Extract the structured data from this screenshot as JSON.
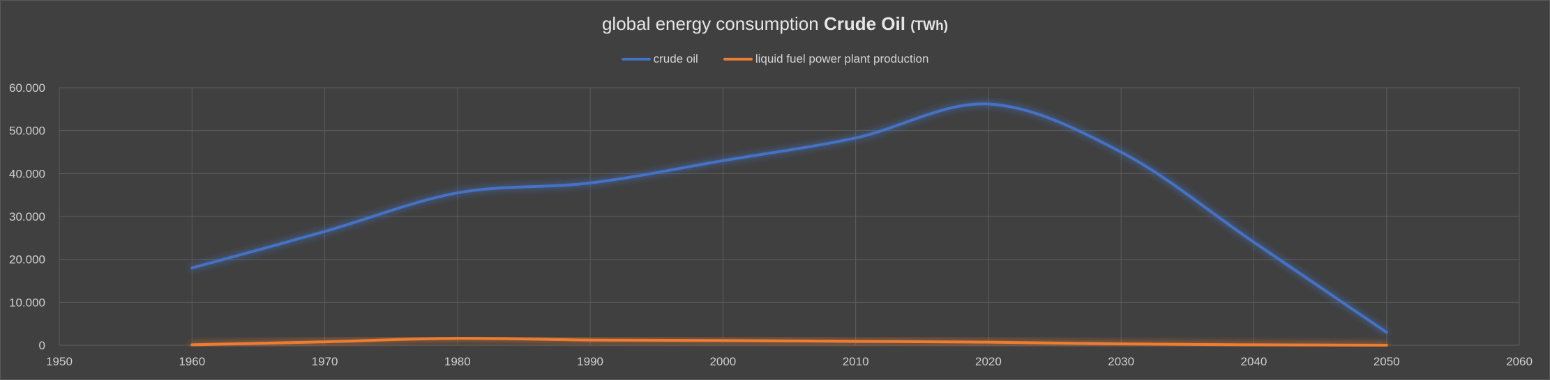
{
  "chart_data": {
    "type": "line",
    "title": "global energy consumption",
    "title_bold": "Crude Oil",
    "title_unit": "(TWh)",
    "xlabel": "",
    "ylabel": "",
    "xlim": [
      1950,
      2060
    ],
    "ylim": [
      0,
      60000
    ],
    "x_ticks": [
      1950,
      1960,
      1970,
      1980,
      1990,
      2000,
      2010,
      2020,
      2030,
      2040,
      2050,
      2060
    ],
    "y_ticks": [
      0,
      10000,
      20000,
      30000,
      40000,
      50000,
      60000
    ],
    "y_tick_labels": [
      "0",
      "10.000",
      "20.000",
      "30.000",
      "40.000",
      "50.000",
      "60.000"
    ],
    "grid": true,
    "legend_position": "top",
    "series": [
      {
        "name": "crude oil",
        "color": "#4472c4",
        "x": [
          1960,
          1970,
          1980,
          1990,
          2000,
          2010,
          2020,
          2030,
          2040,
          2050
        ],
        "y": [
          18000,
          26500,
          35500,
          37800,
          43000,
          48300,
          56200,
          45000,
          24000,
          3000
        ]
      },
      {
        "name": "liquid fuel power plant production",
        "color": "#ed7d31",
        "x": [
          1960,
          1970,
          1980,
          1990,
          2000,
          2010,
          2020,
          2030,
          2040,
          2050
        ],
        "y": [
          100,
          800,
          1600,
          1200,
          1100,
          900,
          700,
          300,
          100,
          0
        ]
      }
    ]
  }
}
